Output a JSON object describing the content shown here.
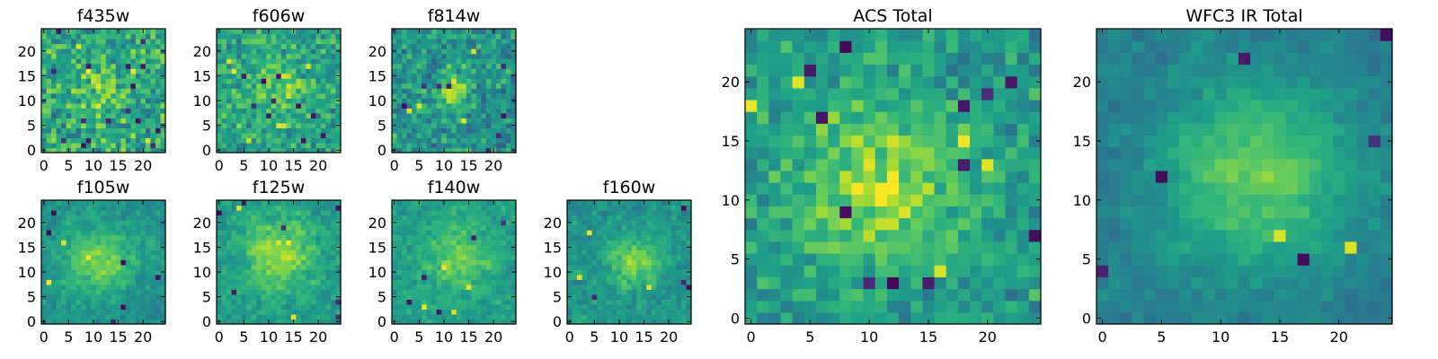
{
  "chart_data": [
    {
      "type": "heatmap",
      "title": "f435w",
      "grid_size": 25,
      "colormap": "viridis",
      "xlim": [
        0,
        24
      ],
      "ylim": [
        0,
        24
      ],
      "xticks": [
        0,
        5,
        10,
        15,
        20
      ],
      "yticks": [
        0,
        5,
        10,
        15,
        20
      ],
      "seed": 11,
      "noise": 0.6,
      "blob": {
        "cx": 12,
        "cy": 12,
        "sigma": 4.0,
        "amp": 0.12
      },
      "dark_spots": 16,
      "bright_spots": 4,
      "level": 0.6
    },
    {
      "type": "heatmap",
      "title": "f606w",
      "grid_size": 25,
      "colormap": "viridis",
      "xlim": [
        0,
        24
      ],
      "ylim": [
        0,
        24
      ],
      "xticks": [
        0,
        5,
        10,
        15,
        20
      ],
      "yticks": [
        0,
        5,
        10,
        15,
        20
      ],
      "seed": 23,
      "noise": 0.5,
      "blob": {
        "cx": 12,
        "cy": 12,
        "sigma": 4.0,
        "amp": 0.2
      },
      "dark_spots": 10,
      "bright_spots": 6,
      "level": 0.58
    },
    {
      "type": "heatmap",
      "title": "f814w",
      "grid_size": 25,
      "colormap": "viridis",
      "xlim": [
        0,
        24
      ],
      "ylim": [
        0,
        24
      ],
      "xticks": [
        0,
        5,
        10,
        15,
        20
      ],
      "yticks": [
        0,
        5,
        10,
        15,
        20
      ],
      "seed": 37,
      "noise": 0.5,
      "blob": {
        "cx": 12,
        "cy": 12,
        "sigma": 2.5,
        "amp": 0.35
      },
      "dark_spots": 8,
      "bright_spots": 4,
      "level": 0.52
    },
    {
      "type": "heatmap",
      "title": "f105w",
      "grid_size": 25,
      "colormap": "viridis",
      "xlim": [
        0,
        24
      ],
      "ylim": [
        0,
        24
      ],
      "xticks": [
        0,
        5,
        10,
        15,
        20
      ],
      "yticks": [
        0,
        5,
        10,
        15,
        20
      ],
      "seed": 41,
      "noise": 0.35,
      "blob": {
        "cx": 11,
        "cy": 12,
        "sigma": 5.0,
        "amp": 0.3
      },
      "dark_spots": 6,
      "bright_spots": 3,
      "level": 0.5
    },
    {
      "type": "heatmap",
      "title": "f125w",
      "grid_size": 25,
      "colormap": "viridis",
      "xlim": [
        0,
        24
      ],
      "ylim": [
        0,
        24
      ],
      "xticks": [
        0,
        5,
        10,
        15,
        20
      ],
      "yticks": [
        0,
        5,
        10,
        15,
        20
      ],
      "seed": 53,
      "noise": 0.35,
      "blob": {
        "cx": 12,
        "cy": 14,
        "sigma": 5.0,
        "amp": 0.3
      },
      "dark_spots": 8,
      "bright_spots": 4,
      "level": 0.55
    },
    {
      "type": "heatmap",
      "title": "f140w",
      "grid_size": 25,
      "colormap": "viridis",
      "xlim": [
        0,
        24
      ],
      "ylim": [
        0,
        24
      ],
      "xticks": [
        0,
        5,
        10,
        15,
        20
      ],
      "yticks": [
        0,
        5,
        10,
        15,
        20
      ],
      "seed": 67,
      "noise": 0.35,
      "blob": {
        "cx": 13,
        "cy": 13,
        "sigma": 5.0,
        "amp": 0.22
      },
      "dark_spots": 5,
      "bright_spots": 4,
      "level": 0.55
    },
    {
      "type": "heatmap",
      "title": "f160w",
      "grid_size": 25,
      "colormap": "viridis",
      "xlim": [
        0,
        24
      ],
      "ylim": [
        0,
        24
      ],
      "xticks": [
        0,
        5,
        10,
        15,
        20
      ],
      "yticks": [
        0,
        5,
        10,
        15,
        20
      ],
      "seed": 79,
      "noise": 0.35,
      "blob": {
        "cx": 13,
        "cy": 12,
        "sigma": 3.5,
        "amp": 0.3
      },
      "dark_spots": 4,
      "bright_spots": 3,
      "level": 0.52
    },
    {
      "type": "heatmap",
      "title": "ACS Total",
      "grid_size": 25,
      "colormap": "viridis",
      "xlim": [
        0,
        24
      ],
      "ylim": [
        0,
        24
      ],
      "xticks": [
        0,
        5,
        10,
        15,
        20
      ],
      "yticks": [
        0,
        5,
        10,
        15,
        20
      ],
      "seed": 97,
      "noise": 0.4,
      "blob": {
        "cx": 11,
        "cy": 11,
        "sigma": 5.0,
        "amp": 0.3
      },
      "dark_spots": 12,
      "bright_spots": 6,
      "level": 0.55
    },
    {
      "type": "heatmap",
      "title": "WFC3 IR Total",
      "grid_size": 25,
      "colormap": "viridis",
      "xlim": [
        0,
        24
      ],
      "ylim": [
        0,
        24
      ],
      "xticks": [
        0,
        5,
        10,
        15,
        20
      ],
      "yticks": [
        0,
        5,
        10,
        15,
        20
      ],
      "seed": 113,
      "noise": 0.25,
      "blob": {
        "cx": 13,
        "cy": 12,
        "sigma": 5.5,
        "amp": 0.35
      },
      "dark_spots": 6,
      "bright_spots": 2,
      "level": 0.42
    }
  ]
}
